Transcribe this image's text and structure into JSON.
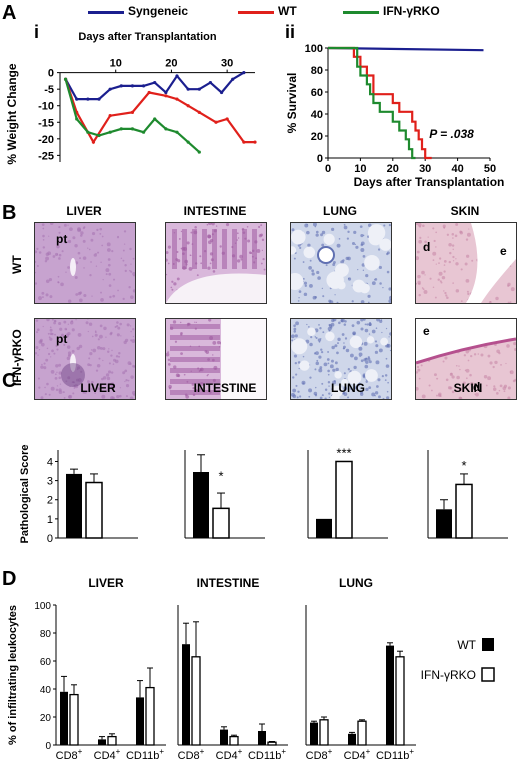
{
  "panels": {
    "A": "A",
    "B": "B",
    "C": "C",
    "D": "D",
    "i": "i",
    "ii": "ii"
  },
  "legend_A": [
    {
      "name": "Syngeneic",
      "color": "#1b1f8f"
    },
    {
      "name": "WT",
      "color": "#e0201b"
    },
    {
      "name": "IFN-γRKO",
      "color": "#1e8a2e"
    }
  ],
  "panel_B": {
    "columns": [
      "LIVER",
      "INTESTINE",
      "LUNG",
      "SKIN"
    ],
    "rows": [
      "WT",
      "IFN-γRKO"
    ],
    "annotations": {
      "pt": "pt",
      "d": "d",
      "e": "e"
    }
  },
  "legend_D": {
    "wt": "WT",
    "ko": "IFN-γRKO"
  },
  "chart_data": [
    {
      "id": "Ai",
      "type": "line",
      "title": "Days after Transplantation",
      "xlabel": "Days after Transplantation",
      "ylabel": "% Weight Change",
      "xticks": [
        "10",
        "20",
        "30"
      ],
      "yticks": [
        "0",
        "-5",
        "-10",
        "-15",
        "-20",
        "-25"
      ],
      "xlim": [
        0,
        35
      ],
      "ylim": [
        -27,
        2
      ],
      "series": [
        {
          "name": "Syngeneic",
          "color": "#1b1f8f",
          "points": [
            [
              1,
              -2
            ],
            [
              3,
              -8
            ],
            [
              5,
              -8
            ],
            [
              7,
              -8
            ],
            [
              9,
              -5
            ],
            [
              11,
              -4
            ],
            [
              13,
              -4
            ],
            [
              15,
              -4
            ],
            [
              17,
              -3
            ],
            [
              19,
              -6
            ],
            [
              21,
              -1
            ],
            [
              23,
              -5
            ],
            [
              25,
              -5
            ],
            [
              27,
              -3
            ],
            [
              29,
              -6
            ],
            [
              31,
              -2
            ],
            [
              33,
              0
            ]
          ]
        },
        {
          "name": "WT",
          "color": "#e0201b",
          "points": [
            [
              1,
              -2
            ],
            [
              3,
              -12
            ],
            [
              6,
              -21
            ],
            [
              9,
              -13
            ],
            [
              13,
              -12
            ],
            [
              16,
              -6
            ],
            [
              19,
              -7
            ],
            [
              21,
              -8
            ],
            [
              23,
              -10
            ],
            [
              25,
              -12
            ],
            [
              28,
              -15
            ],
            [
              30,
              -14
            ],
            [
              33,
              -21
            ],
            [
              35,
              -21
            ]
          ]
        },
        {
          "name": "IFN-γRKO",
          "color": "#1e8a2e",
          "points": [
            [
              1,
              -2
            ],
            [
              3,
              -14
            ],
            [
              5,
              -18
            ],
            [
              7,
              -19
            ],
            [
              9,
              -18
            ],
            [
              11,
              -17
            ],
            [
              13,
              -17
            ],
            [
              15,
              -18
            ],
            [
              17,
              -14
            ],
            [
              19,
              -17
            ],
            [
              21,
              -18
            ],
            [
              23,
              -21
            ],
            [
              25,
              -24
            ]
          ]
        }
      ]
    },
    {
      "id": "Aii",
      "type": "line",
      "xlabel": "Days after Transplantation",
      "ylabel": "% Survival",
      "xticks": [
        "0",
        "10",
        "20",
        "30",
        "40",
        "50"
      ],
      "yticks": [
        "0",
        "20",
        "40",
        "60",
        "80",
        "100"
      ],
      "xlim": [
        0,
        50
      ],
      "ylim": [
        0,
        100
      ],
      "annotation": "P = .038",
      "series": [
        {
          "name": "Syngeneic",
          "color": "#1b1f8f",
          "points": [
            [
              0,
              100
            ],
            [
              48,
              98
            ]
          ]
        },
        {
          "name": "WT",
          "color": "#e0201b",
          "points": [
            [
              0,
              100
            ],
            [
              8,
              100
            ],
            [
              8,
              92
            ],
            [
              10,
              92
            ],
            [
              10,
              83
            ],
            [
              12,
              83
            ],
            [
              12,
              75
            ],
            [
              14,
              75
            ],
            [
              14,
              58
            ],
            [
              20,
              58
            ],
            [
              20,
              50
            ],
            [
              22,
              50
            ],
            [
              22,
              42
            ],
            [
              26,
              42
            ],
            [
              26,
              33
            ],
            [
              27,
              33
            ],
            [
              27,
              25
            ],
            [
              28,
              25
            ],
            [
              28,
              17
            ],
            [
              29,
              17
            ],
            [
              29,
              8
            ],
            [
              30,
              8
            ],
            [
              30,
              0
            ],
            [
              32,
              0
            ]
          ]
        },
        {
          "name": "IFN-γRKO",
          "color": "#1e8a2e",
          "points": [
            [
              0,
              100
            ],
            [
              9,
              100
            ],
            [
              9,
              83
            ],
            [
              10,
              83
            ],
            [
              10,
              75
            ],
            [
              12,
              75
            ],
            [
              12,
              67
            ],
            [
              13,
              67
            ],
            [
              13,
              58
            ],
            [
              14,
              58
            ],
            [
              14,
              50
            ],
            [
              16,
              50
            ],
            [
              16,
              42
            ],
            [
              20,
              42
            ],
            [
              20,
              33
            ],
            [
              22,
              33
            ],
            [
              22,
              25
            ],
            [
              24,
              25
            ],
            [
              24,
              17
            ],
            [
              25,
              17
            ],
            [
              25,
              8
            ],
            [
              26,
              8
            ],
            [
              26,
              0
            ],
            [
              27,
              0
            ]
          ]
        }
      ]
    },
    {
      "id": "C",
      "type": "bar",
      "ylabel": "Pathological Score",
      "yticks": [
        "0",
        "1",
        "2",
        "3",
        "4"
      ],
      "ylim": [
        0,
        4.6
      ],
      "groups": [
        {
          "title": "LIVER",
          "wt": 3.35,
          "wt_err": 0.25,
          "ko": 2.9,
          "ko_err": 0.45,
          "sig": ""
        },
        {
          "title": "INTESTINE",
          "wt": 3.45,
          "wt_err": 0.9,
          "ko": 1.55,
          "ko_err": 0.8,
          "sig": "*"
        },
        {
          "title": "LUNG",
          "wt": 1.0,
          "wt_err": 0,
          "ko": 4.0,
          "ko_err": 0,
          "sig": "***"
        },
        {
          "title": "SKIN",
          "wt": 1.5,
          "wt_err": 0.5,
          "ko": 2.8,
          "ko_err": 0.55,
          "sig": "*"
        }
      ],
      "series": [
        {
          "name": "WT"
        },
        {
          "name": "IFN-γRKO"
        }
      ]
    },
    {
      "id": "D",
      "type": "bar",
      "ylabel": "% of infiltrating leukocytes",
      "yticks": [
        "0",
        "20",
        "40",
        "60",
        "80",
        "100"
      ],
      "ylim": [
        0,
        100
      ],
      "categories": [
        "CD8+",
        "CD4+",
        "CD11b+"
      ],
      "groups": [
        {
          "title": "LIVER",
          "wt": [
            38,
            4,
            34
          ],
          "wt_err": [
            11,
            2,
            12
          ],
          "ko": [
            36,
            6,
            41
          ],
          "ko_err": [
            7,
            2,
            14
          ]
        },
        {
          "title": "INTESTINE",
          "wt": [
            72,
            11,
            10
          ],
          "wt_err": [
            15,
            2,
            5
          ],
          "ko": [
            63,
            6,
            2
          ],
          "ko_err": [
            25,
            1,
            0.5
          ]
        },
        {
          "title": "LUNG",
          "wt": [
            16,
            8,
            71
          ],
          "wt_err": [
            1,
            1,
            2
          ],
          "ko": [
            18,
            17,
            63
          ],
          "ko_err": [
            2,
            1,
            4
          ]
        }
      ],
      "series": [
        {
          "name": "WT"
        },
        {
          "name": "IFN-γRKO"
        }
      ]
    }
  ]
}
